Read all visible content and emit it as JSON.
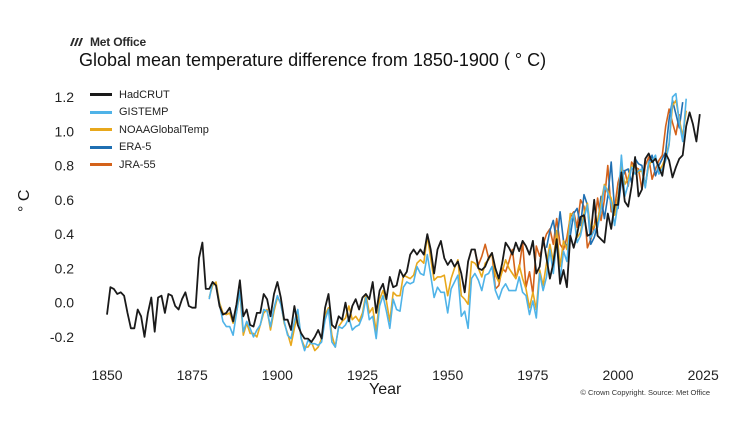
{
  "brand": {
    "name": "Met Office",
    "logo_icon": "met-office-logo-icon"
  },
  "copyright": "© Crown Copyright. Source: Met Office",
  "chart_data": {
    "type": "line",
    "title": "Global mean temperature difference from 1850-1900 ( ° C)",
    "xlabel": "Year",
    "ylabel": "° C",
    "xlim": [
      1845,
      2027
    ],
    "ylim": [
      -0.3,
      1.27
    ],
    "xticks": [
      1850,
      1875,
      1900,
      1925,
      1950,
      1975,
      2000,
      2025
    ],
    "yticks": [
      "-0.2",
      "0.0",
      "0.2",
      "0.4",
      "0.6",
      "0.8",
      "1.0",
      "1.2"
    ],
    "ytick_values": [
      -0.2,
      0.0,
      0.2,
      0.4,
      0.6,
      0.8,
      1.0,
      1.2
    ],
    "grid": false,
    "legend_position": "top-left",
    "series": [
      {
        "name": "HadCRUT",
        "color": "#1a1a1a",
        "x_start": 1850,
        "values": [
          -0.07,
          0.09,
          0.08,
          0.05,
          0.06,
          0.04,
          -0.06,
          -0.15,
          -0.15,
          -0.04,
          -0.08,
          -0.2,
          -0.06,
          0.03,
          -0.17,
          0.03,
          0.04,
          -0.06,
          0.05,
          0.04,
          -0.02,
          -0.04,
          0.02,
          0.06,
          -0.02,
          -0.03,
          -0.03,
          0.26,
          0.35,
          0.08,
          0.08,
          0.12,
          0.1,
          -0.02,
          -0.07,
          -0.06,
          -0.03,
          -0.11,
          -0.01,
          0.13,
          -0.08,
          -0.04,
          -0.13,
          -0.14,
          -0.06,
          -0.06,
          0.05,
          0.02,
          -0.08,
          0.05,
          0.12,
          0.03,
          -0.1,
          -0.1,
          -0.16,
          -0.02,
          -0.13,
          -0.18,
          -0.21,
          -0.21,
          -0.23,
          -0.2,
          -0.16,
          -0.21,
          -0.03,
          0.05,
          -0.13,
          -0.15,
          -0.08,
          -0.1,
          0.0,
          -0.11,
          -0.02,
          0.02,
          -0.04,
          0.03,
          0.05,
          0.02,
          0.12,
          -0.06,
          0.07,
          0.11,
          0.02,
          0.15,
          0.09,
          0.1,
          0.19,
          0.15,
          0.18,
          0.28,
          0.31,
          0.28,
          0.31,
          0.28,
          0.4,
          0.31,
          0.17,
          0.31,
          0.36,
          0.26,
          0.22,
          0.25,
          0.21,
          0.24,
          0.17,
          0.06,
          0.24,
          0.31,
          0.31,
          0.2,
          0.19,
          0.21,
          0.26,
          0.29,
          0.2,
          0.14,
          0.23,
          0.35,
          0.32,
          0.28,
          0.35,
          0.3,
          0.36,
          0.33,
          0.28,
          0.36,
          0.17,
          0.21,
          0.38,
          0.26,
          0.14,
          0.23,
          0.37,
          0.11,
          0.19,
          0.09,
          0.39,
          0.32,
          0.4,
          0.5,
          0.51,
          0.39,
          0.4,
          0.6,
          0.39,
          0.37,
          0.35,
          0.52,
          0.43,
          0.57,
          0.57,
          0.76,
          0.59,
          0.56,
          0.68,
          0.85,
          0.62,
          0.66,
          0.84,
          0.87,
          0.82,
          0.84,
          0.79,
          0.74,
          0.87,
          0.83,
          0.73,
          0.79,
          0.84,
          0.86,
          1.03,
          1.11,
          1.04,
          0.94,
          1.1
        ]
      },
      {
        "name": "GISTEMP",
        "color": "#4fb3e8",
        "x_start": 1880,
        "values": [
          0.02,
          0.12,
          0.1,
          -0.01,
          -0.11,
          -0.14,
          -0.14,
          -0.19,
          -0.06,
          0.07,
          -0.17,
          -0.11,
          -0.15,
          -0.2,
          -0.16,
          -0.13,
          -0.04,
          -0.05,
          -0.14,
          -0.03,
          0.04,
          -0.01,
          -0.11,
          -0.19,
          -0.21,
          -0.11,
          -0.04,
          -0.21,
          -0.28,
          -0.22,
          -0.24,
          -0.24,
          -0.25,
          -0.23,
          -0.1,
          -0.04,
          -0.23,
          -0.26,
          -0.14,
          -0.15,
          -0.13,
          -0.09,
          -0.16,
          -0.14,
          -0.13,
          -0.08,
          0.03,
          -0.1,
          -0.08,
          -0.21,
          -0.02,
          0.04,
          -0.05,
          -0.15,
          0.02,
          -0.04,
          -0.05,
          0.09,
          0.12,
          0.11,
          0.12,
          0.21,
          0.17,
          0.16,
          0.28,
          0.16,
          0.03,
          0.09,
          0.06,
          0.06,
          -0.06,
          0.08,
          0.12,
          0.16,
          -0.08,
          -0.05,
          -0.15,
          0.14,
          0.17,
          0.13,
          0.07,
          0.16,
          0.17,
          0.21,
          0.07,
          0.02,
          0.08,
          0.11,
          0.07,
          0.07,
          0.07,
          0.15,
          0.06,
          0.04,
          -0.07,
          0.01,
          -0.09,
          0.17,
          0.07,
          0.15,
          0.31,
          0.17,
          0.36,
          0.14,
          0.3,
          0.24,
          0.47,
          0.52,
          0.35,
          0.39,
          0.49,
          0.57,
          0.38,
          0.42,
          0.44,
          0.54,
          0.68,
          0.64,
          0.58,
          0.45,
          0.58,
          0.86,
          0.62,
          0.69,
          0.79,
          0.75,
          0.77,
          0.78,
          0.67,
          0.82,
          0.83,
          0.86,
          0.75,
          0.78,
          0.83,
          0.92,
          1.2,
          1.22,
          1.05,
          0.94,
          1.19
        ]
      },
      {
        "name": "NOAAGlobalTemp",
        "color": "#e8a81c",
        "x_start": 1880,
        "values": [
          0.03,
          0.1,
          0.12,
          0.0,
          -0.06,
          -0.07,
          -0.06,
          -0.12,
          -0.06,
          0.06,
          -0.19,
          -0.12,
          -0.18,
          -0.18,
          -0.2,
          -0.13,
          -0.06,
          -0.04,
          -0.16,
          -0.05,
          0.03,
          0.0,
          -0.12,
          -0.18,
          -0.25,
          -0.15,
          -0.06,
          -0.21,
          -0.26,
          -0.26,
          -0.23,
          -0.28,
          -0.26,
          -0.21,
          -0.07,
          -0.03,
          -0.19,
          -0.26,
          -0.14,
          -0.11,
          -0.09,
          -0.02,
          -0.1,
          -0.08,
          -0.11,
          -0.06,
          0.05,
          -0.06,
          -0.03,
          -0.17,
          0.02,
          0.07,
          0.01,
          -0.11,
          0.06,
          0.04,
          0.04,
          0.16,
          0.15,
          0.14,
          0.16,
          0.23,
          0.25,
          0.23,
          0.39,
          0.26,
          0.13,
          0.15,
          0.15,
          0.16,
          0.04,
          0.14,
          0.2,
          0.25,
          0.04,
          0.02,
          -0.01,
          0.24,
          0.23,
          0.2,
          0.15,
          0.23,
          0.25,
          0.29,
          0.16,
          0.12,
          0.18,
          0.25,
          0.2,
          0.17,
          0.14,
          0.22,
          0.14,
          0.08,
          -0.03,
          0.06,
          -0.04,
          0.19,
          0.1,
          0.23,
          0.34,
          0.24,
          0.42,
          0.21,
          0.36,
          0.31,
          0.52,
          0.51,
          0.38,
          0.41,
          0.52,
          0.58,
          0.42,
          0.45,
          0.48,
          0.58,
          0.69,
          0.65,
          0.61,
          0.51,
          0.62,
          0.8,
          0.69,
          0.73,
          0.8,
          0.79,
          0.76,
          0.77,
          0.68,
          0.8,
          0.83,
          0.85,
          0.77,
          0.8,
          0.85,
          0.93,
          1.15,
          1.18,
          1.07,
          0.97,
          1.12
        ]
      },
      {
        "name": "ERA-5",
        "color": "#1f6fb2",
        "x_start": 1979,
        "values": [
          0.32,
          0.42,
          0.48,
          0.35,
          0.53,
          0.36,
          0.33,
          0.39,
          0.52,
          0.55,
          0.45,
          0.63,
          0.57,
          0.34,
          0.38,
          0.45,
          0.62,
          0.49,
          0.62,
          0.82,
          0.54,
          0.55,
          0.71,
          0.77,
          0.78,
          0.7,
          0.84,
          0.81,
          0.8,
          0.68,
          0.82,
          0.86,
          0.74,
          0.8,
          0.84,
          0.88,
          1.07,
          1.18,
          1.1,
          1.02,
          1.17
        ]
      },
      {
        "name": "JRA-55",
        "color": "#d4621a",
        "x_start": 1958,
        "values": [
          0.3,
          0.22,
          0.27,
          0.34,
          0.26,
          0.29,
          0.08,
          0.1,
          0.2,
          0.18,
          0.24,
          0.31,
          0.14,
          0.2,
          0.35,
          0.09,
          0.18,
          0.05,
          0.33,
          0.27,
          0.34,
          0.4,
          0.43,
          0.34,
          0.49,
          0.34,
          0.31,
          0.38,
          0.5,
          0.53,
          0.44,
          0.6,
          0.56,
          0.32,
          0.37,
          0.44,
          0.61,
          0.48,
          0.6,
          0.8,
          0.53,
          0.55,
          0.7,
          0.77,
          0.77,
          0.68,
          0.82,
          0.79,
          0.78,
          0.66,
          0.8,
          0.85,
          0.72,
          0.78,
          0.83,
          0.86,
          1.03,
          1.13,
          1.05,
          0.98,
          1.1
        ]
      }
    ]
  }
}
